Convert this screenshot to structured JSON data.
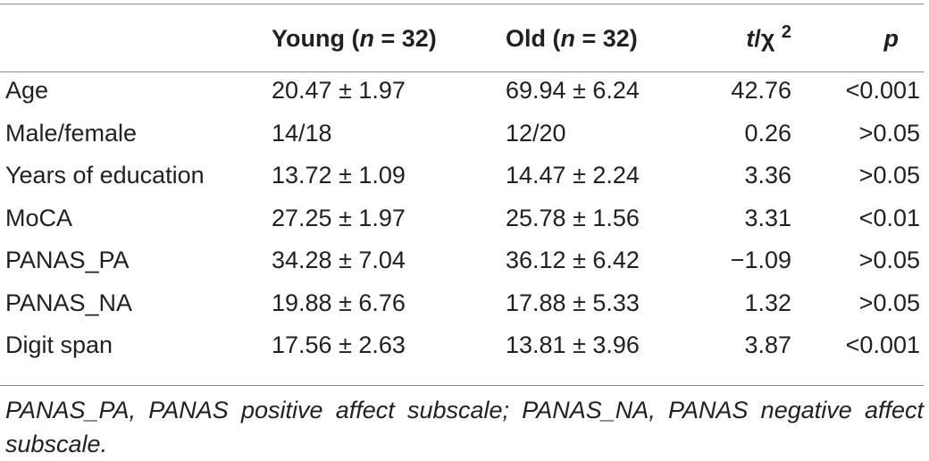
{
  "table": {
    "headers": [
      "",
      "Young (n = 32)",
      "Old (n = 32)",
      "t/χ 2",
      "p"
    ],
    "rows": [
      [
        "Age",
        "20.47 ± 1.97",
        "69.94 ± 6.24",
        "42.76",
        "<0.001"
      ],
      [
        "Male/female",
        "14/18",
        "12/20",
        "0.26",
        ">0.05"
      ],
      [
        "Years of education",
        "13.72 ± 1.09",
        "14.47 ± 2.24",
        "3.36",
        ">0.05"
      ],
      [
        "MoCA",
        "27.25 ± 1.97",
        "25.78 ± 1.56",
        "3.31",
        "<0.01"
      ],
      [
        "PANAS_PA",
        "34.28 ± 7.04",
        "36.12 ± 6.42",
        "−1.09",
        ">0.05"
      ],
      [
        "PANAS_NA",
        "19.88 ± 6.76",
        "17.88 ± 5.33",
        "1.32",
        ">0.05"
      ],
      [
        "Digit span",
        "17.56 ± 2.63",
        "13.81 ± 3.96",
        "3.87",
        "<0.001"
      ]
    ]
  },
  "footnote": "PANAS_PA, PANAS positive affect subscale; PANAS_NA, PANAS negative affect subscale."
}
